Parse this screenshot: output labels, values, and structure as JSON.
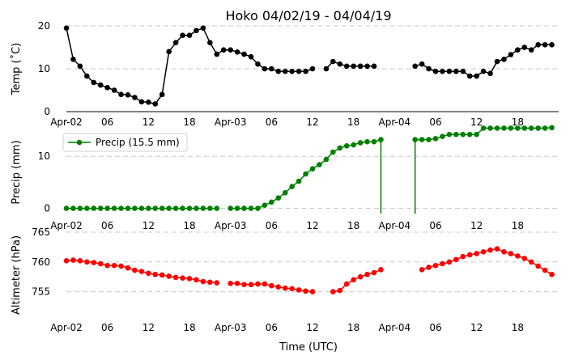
{
  "title": "Hoko 04/02/19 - 04/04/19",
  "xlabel": "Time (UTC)",
  "x_tick_labels": [
    "Apr-02",
    "06",
    "12",
    "18",
    "Apr-03",
    "06",
    "12",
    "18",
    "Apr-04",
    "06",
    "12",
    "18"
  ],
  "chart_data": [
    {
      "type": "line",
      "ylabel": "Temp (˚C)",
      "ylim": [
        0,
        20
      ],
      "yticks": [
        0,
        10,
        20
      ],
      "grid": "horizontal dashed",
      "series": [
        {
          "color": "#000000",
          "x": [
            0,
            1,
            2,
            3,
            4,
            5,
            6,
            7,
            8,
            9,
            10,
            11,
            12,
            13,
            14,
            15,
            16,
            17,
            18,
            19,
            20,
            21,
            22,
            23,
            24,
            25,
            26,
            27,
            28,
            29,
            30,
            31,
            32,
            33,
            34,
            35,
            36,
            38,
            39,
            40,
            41,
            42,
            43,
            44,
            45,
            51,
            52,
            53,
            54,
            55,
            56,
            57,
            58,
            59,
            60,
            61,
            62,
            63,
            64,
            65,
            66,
            67,
            68,
            69,
            70,
            71
          ],
          "values": [
            19.5,
            12.2,
            10.6,
            8.3,
            6.8,
            6.2,
            5.6,
            5.0,
            4.0,
            3.9,
            3.3,
            2.3,
            2.2,
            1.8,
            4.0,
            14.0,
            16.1,
            17.8,
            17.8,
            18.9,
            19.5,
            16.1,
            13.4,
            14.4,
            14.4,
            13.9,
            13.4,
            12.8,
            11.1,
            10.0,
            10.0,
            9.4,
            9.4,
            9.4,
            9.4,
            9.4,
            10.0,
            10.0,
            11.7,
            11.1,
            10.6,
            10.6,
            10.6,
            10.6,
            10.6,
            10.6,
            11.1,
            10.0,
            9.4,
            9.4,
            9.4,
            9.4,
            9.4,
            8.3,
            8.3,
            9.4,
            8.9,
            11.7,
            12.2,
            13.3,
            14.4,
            15.0,
            14.4,
            15.6,
            15.6,
            15.6
          ]
        }
      ]
    },
    {
      "type": "line",
      "ylabel": "Precip (mm)",
      "ylim": [
        -1,
        15
      ],
      "yticks": [
        0,
        10
      ],
      "grid": "horizontal dashed",
      "legend": {
        "position": "top-left",
        "entries": [
          "Precip (15.5 mm)"
        ]
      },
      "series": [
        {
          "name": "Precip (15.5 mm)",
          "color": "#008000",
          "x": [
            0,
            1,
            2,
            3,
            4,
            5,
            6,
            7,
            8,
            9,
            10,
            11,
            12,
            13,
            14,
            15,
            16,
            17,
            18,
            19,
            20,
            21,
            22,
            24,
            25,
            26,
            27,
            28,
            29,
            30,
            31,
            32,
            33,
            34,
            35,
            36,
            37,
            38,
            39,
            40,
            41,
            42,
            43,
            44,
            45,
            46,
            51,
            52,
            53,
            54,
            55,
            56,
            57,
            58,
            59,
            60,
            61,
            62,
            63,
            64,
            65,
            66,
            67,
            68,
            69,
            70,
            71
          ],
          "values": [
            0,
            0,
            0,
            0,
            0,
            0,
            0,
            0,
            0,
            0,
            0,
            0,
            0,
            0,
            0,
            0,
            0,
            0,
            0,
            0,
            0,
            0,
            0,
            0,
            0,
            0,
            0,
            0,
            0.6,
            1.2,
            2.0,
            3.0,
            4.2,
            5.2,
            6.6,
            7.6,
            8.4,
            9.4,
            10.8,
            11.6,
            12.0,
            12.2,
            12.6,
            12.8,
            12.8,
            13.2,
            13.2,
            13.2,
            13.2,
            13.4,
            13.8,
            14.2,
            14.2,
            14.2,
            14.2,
            14.2,
            15.4,
            15.4,
            15.4,
            15.4,
            15.4,
            15.4,
            15.4,
            15.4,
            15.4,
            15.4,
            15.5
          ]
        }
      ]
    },
    {
      "type": "line",
      "ylabel": "Altimeter (hPa)",
      "ylim": [
        751,
        765
      ],
      "yticks": [
        755,
        760,
        765
      ],
      "grid": "horizontal dashed",
      "series": [
        {
          "color": "#ff0000",
          "x": [
            0,
            1,
            2,
            3,
            4,
            5,
            6,
            7,
            8,
            9,
            10,
            11,
            12,
            13,
            14,
            15,
            16,
            17,
            18,
            19,
            20,
            21,
            22,
            24,
            25,
            26,
            27,
            28,
            29,
            30,
            31,
            32,
            33,
            34,
            35,
            36,
            39,
            40,
            41,
            42,
            43,
            44,
            45,
            46,
            52,
            53,
            54,
            55,
            56,
            57,
            58,
            59,
            60,
            61,
            62,
            63,
            64,
            65,
            66,
            67,
            68,
            69,
            70,
            71
          ],
          "values": [
            760.2,
            760.3,
            760.2,
            760.0,
            759.9,
            759.7,
            759.4,
            759.4,
            759.3,
            759.0,
            758.6,
            758.4,
            758.1,
            757.9,
            757.8,
            757.6,
            757.4,
            757.3,
            757.2,
            757.0,
            756.7,
            756.6,
            756.5,
            756.4,
            756.4,
            756.2,
            756.2,
            756.3,
            756.3,
            756.0,
            755.8,
            755.6,
            755.5,
            755.3,
            755.1,
            755.0,
            755.0,
            755.2,
            756.3,
            757.0,
            757.5,
            757.9,
            758.2,
            758.7,
            758.7,
            759.1,
            759.4,
            759.7,
            760.0,
            760.4,
            760.9,
            761.2,
            761.4,
            761.7,
            762.0,
            762.2,
            761.7,
            761.4,
            761.0,
            760.6,
            760.0,
            759.3,
            758.6,
            757.9
          ]
        }
      ]
    }
  ]
}
